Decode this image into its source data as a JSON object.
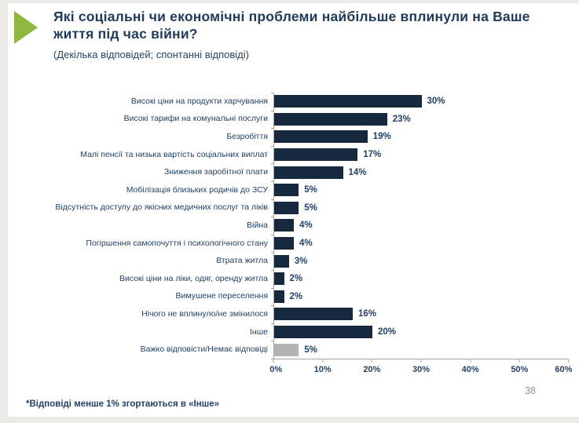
{
  "header": {
    "title": "Які соціальні чи економічні проблеми найбільше вплинули на Ваше життя під час війни?",
    "subtitle": "(Декілька відповідей; спонтанні відповіді)"
  },
  "chart_data": {
    "type": "bar",
    "orientation": "horizontal",
    "title": "Які соціальні чи економічні проблеми найбільше вплинули на Ваше життя під час війни?",
    "categories": [
      "Високі ціни на продукти харчування",
      "Високі тарифи на комунальні послуги",
      "Безробіття",
      "Малі пенсії та низька вартість соціальних виплат",
      "Зниження заробітної плати",
      "Мобілізація близьких родичів до ЗСУ",
      "Відсутність доступу до якісних медичних послуг та ліків",
      "Війна",
      "Погіршення самопочуття і психологічного стану",
      "Втрата житла",
      "Високі ціни на ліки, одяг, оренду житла",
      "Вимушене переселення",
      "Нічого не вплинуло/не змінилося",
      "Інше",
      "Важко відповісти/Немає відповіді"
    ],
    "values": [
      30,
      23,
      19,
      17,
      14,
      5,
      5,
      4,
      4,
      3,
      2,
      2,
      16,
      20,
      5
    ],
    "value_labels": [
      "30%",
      "23%",
      "19%",
      "17%",
      "14%",
      "5%",
      "5%",
      "4%",
      "4%",
      "3%",
      "2%",
      "2%",
      "16%",
      "20%",
      "5%"
    ],
    "xlim": [
      0,
      60
    ],
    "x_tick_labels": [
      "0%",
      "10%",
      "20%",
      "30%",
      "40%",
      "50%",
      "60%"
    ],
    "grid": false,
    "legend": "none",
    "bar_color": "#17293f",
    "no_answer_bar_color": "#b3b3b3",
    "no_answer_index": 14
  },
  "footer": {
    "note": "*Відповіді менше 1% згортаються в «Інше»",
    "page_number": "38"
  },
  "accent": {
    "triangle_color": "#8fb93e",
    "title_color": "#1f3a5f"
  }
}
